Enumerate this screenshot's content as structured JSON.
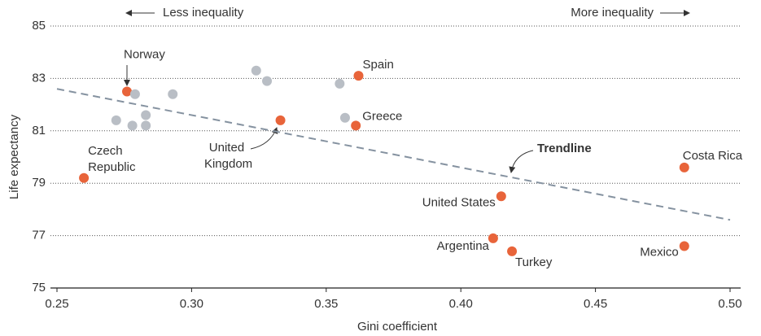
{
  "chart_data": {
    "type": "scatter",
    "xlabel": "Gini coefficient",
    "ylabel": "Life expectancy",
    "annotations": [
      "Less inequality",
      "More inequality"
    ],
    "xlim": [
      0.25,
      0.5
    ],
    "xticks": [
      0.25,
      {
        "value": 0.3,
        "label": "0.30"
      },
      0.35,
      {
        "value": 0.4,
        "label": "0.40"
      },
      0.45,
      {
        "value": 0.5,
        "label": "0.50"
      }
    ],
    "ylim": [
      75,
      85
    ],
    "yticks": [
      75,
      77,
      79,
      81,
      83,
      85
    ],
    "grid": true,
    "series": [
      {
        "color": "#e8643a",
        "labels": [
          "Czech Republic",
          "Norway",
          "United Kingdom",
          "Spain",
          "Greece",
          "United States",
          "Argentina",
          "Turkey",
          "Costa Rica",
          "Mexico"
        ],
        "x": [
          0.26,
          0.276,
          0.333,
          0.362,
          0.361,
          0.415,
          0.412,
          0.419,
          0.483,
          0.483
        ],
        "values": [
          79.2,
          82.5,
          81.4,
          83.1,
          81.2,
          78.5,
          76.9,
          76.4,
          79.6,
          76.6
        ]
      },
      {
        "color": "#b9bec5",
        "x": [
          0.279,
          0.293,
          0.272,
          0.278,
          0.283,
          0.283,
          0.324,
          0.328,
          0.355,
          0.357
        ],
        "values": [
          82.4,
          82.4,
          81.4,
          81.2,
          81.6,
          81.2,
          83.3,
          82.9,
          82.8,
          81.5
        ]
      }
    ],
    "trendline": {
      "name": "Trendline",
      "color": "#8592a0",
      "x": [
        0.25,
        0.5
      ],
      "values": [
        82.6,
        77.6
      ]
    }
  }
}
